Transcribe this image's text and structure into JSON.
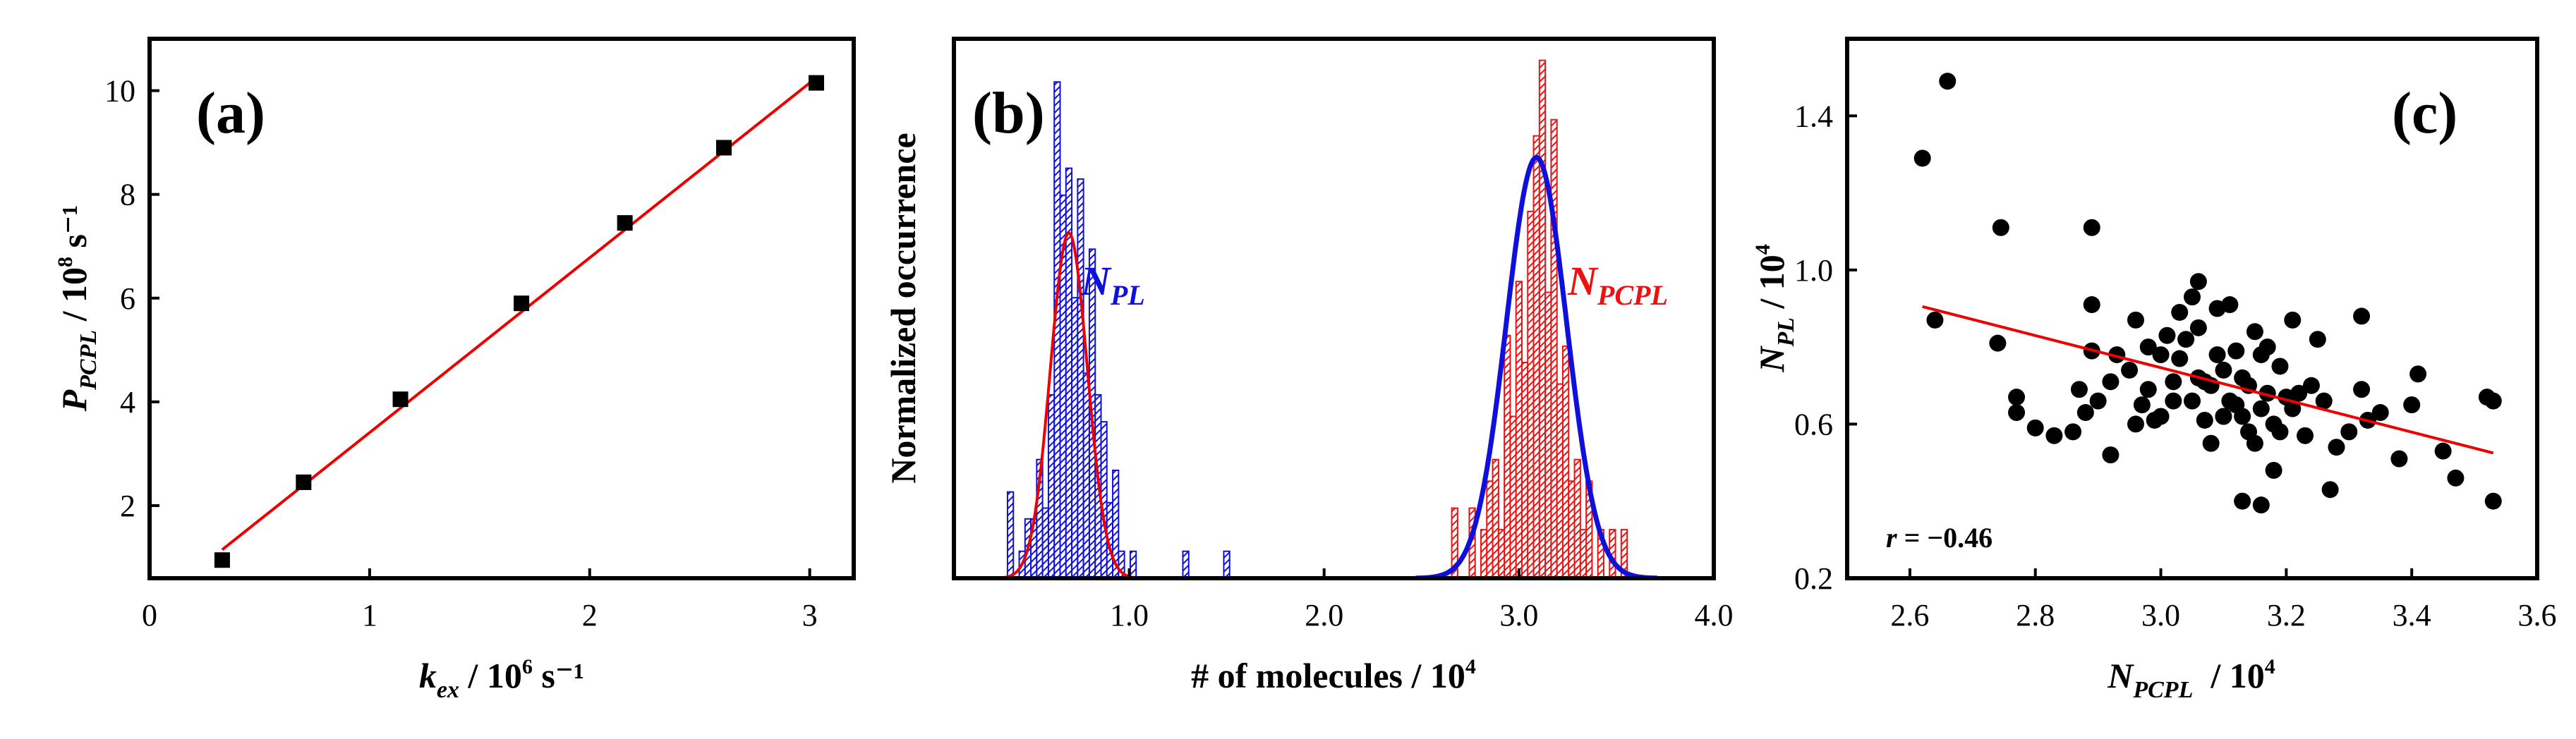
{
  "chart_data": [
    {
      "panel": "(a)",
      "type": "scatter",
      "title": "",
      "xlabel": {
        "main": "k",
        "sub": "ex",
        "rest": " / 10",
        "sup": "6",
        "unit": " s⁻¹"
      },
      "ylabel": {
        "main": "P",
        "sub": "PCPL",
        "rest": " / 10",
        "sup": "8",
        "unit": " s⁻¹"
      },
      "xlim": [
        0,
        3.2
      ],
      "ylim": [
        0.6,
        11.0
      ],
      "xticks": [
        0,
        1,
        2,
        3
      ],
      "yticks": [
        2,
        4,
        6,
        8,
        10
      ],
      "x": [
        0.33,
        0.7,
        1.14,
        1.69,
        2.16,
        2.61,
        3.03
      ],
      "y": [
        0.95,
        2.45,
        4.05,
        5.9,
        7.45,
        8.9,
        10.15
      ],
      "fit": {
        "x": [
          0.33,
          3.03
        ],
        "y": [
          1.15,
          10.25
        ],
        "color": "#ee0000"
      },
      "marker_color": "#000000"
    },
    {
      "panel": "(b)",
      "type": "bar",
      "title": "",
      "xlabel": {
        "main": "# of molecules / 10",
        "sup": "4"
      },
      "ylabel": "Normalized occurrence",
      "xlim": [
        0.1,
        4.0
      ],
      "ylim": [
        0,
        1.0
      ],
      "xticks": [
        "1.0",
        "2.0",
        "3.0",
        "4.0"
      ],
      "bin_width": 0.03,
      "series": [
        {
          "name": "N_PL",
          "label_main": "N",
          "label_sub": "PL",
          "color": "#1010dd",
          "fit_color": "#ee0000",
          "bins": [
            0.39,
            0.45,
            0.48,
            0.51,
            0.54,
            0.57,
            0.6,
            0.63,
            0.66,
            0.69,
            0.72,
            0.75,
            0.78,
            0.81,
            0.84,
            0.87,
            0.9,
            0.93,
            0.96,
            1.02,
            1.29,
            1.5
          ],
          "values": [
            0.16,
            0.05,
            0.11,
            0.11,
            0.22,
            0.13,
            0.34,
            0.92,
            0.71,
            0.76,
            0.52,
            0.74,
            0.38,
            0.61,
            0.34,
            0.29,
            0.14,
            0.2,
            0.05,
            0.05,
            0.05,
            0.05
          ],
          "fit_mean": 0.69,
          "fit_sigma": 0.095,
          "fit_amp": 0.64
        },
        {
          "name": "N_PCPL",
          "label_main": "N",
          "label_sub": "PCPL",
          "color": "#ee1111",
          "fit_color": "#1010dd",
          "bins": [
            2.67,
            2.76,
            2.82,
            2.85,
            2.88,
            2.91,
            2.94,
            2.97,
            3.0,
            3.03,
            3.06,
            3.09,
            3.12,
            3.15,
            3.18,
            3.21,
            3.24,
            3.27,
            3.3,
            3.33,
            3.36,
            3.42,
            3.48,
            3.54
          ],
          "values": [
            0.13,
            0.13,
            0.09,
            0.18,
            0.22,
            0.09,
            0.45,
            0.3,
            0.55,
            0.4,
            0.68,
            0.82,
            0.96,
            0.53,
            0.85,
            0.36,
            0.43,
            0.18,
            0.22,
            0.09,
            0.18,
            0.09,
            0.09,
            0.09
          ],
          "fit_mean": 3.09,
          "fit_sigma": 0.155,
          "fit_amp": 0.78
        }
      ]
    },
    {
      "panel": "(c)",
      "type": "scatter",
      "title": "",
      "xlabel": {
        "main": "N",
        "sub": "PCPL",
        "rest": "  / 10",
        "sup": "4"
      },
      "ylabel": {
        "main": "N",
        "sub": "PL",
        "rest": " / 10",
        "sup": "4"
      },
      "xlim": [
        2.5,
        3.6
      ],
      "ylim": [
        0.2,
        1.6
      ],
      "xticks": [
        "2.6",
        "2.8",
        "3.0",
        "3.2",
        "3.4",
        "3.6"
      ],
      "yticks": [
        "0.2",
        "0.6",
        "1.0",
        "1.4"
      ],
      "annotation": "r = −0.46",
      "annotation_r": "r",
      "annotation_rest": " = −0.46",
      "fit": {
        "x": [
          2.62,
          3.53
        ],
        "y": [
          0.905,
          0.525
        ],
        "color": "#ee0000"
      },
      "marker_color": "#000000",
      "x": [
        2.62,
        2.66,
        2.64,
        2.745,
        2.77,
        2.77,
        2.74,
        2.8,
        2.83,
        2.86,
        2.87,
        2.89,
        2.89,
        2.88,
        2.9,
        2.89,
        2.92,
        2.92,
        2.93,
        2.95,
        2.96,
        2.96,
        2.97,
        2.98,
        2.98,
        2.99,
        3.0,
        3.0,
        3.01,
        3.02,
        3.02,
        3.03,
        3.03,
        3.04,
        3.05,
        3.05,
        3.06,
        3.06,
        3.07,
        3.07,
        3.08,
        3.08,
        3.09,
        3.09,
        3.1,
        3.1,
        3.11,
        3.11,
        3.12,
        3.12,
        3.13,
        3.13,
        3.14,
        3.14,
        3.15,
        3.15,
        3.16,
        3.16,
        3.17,
        3.17,
        3.18,
        3.18,
        3.19,
        3.19,
        3.2,
        3.21,
        3.21,
        3.22,
        3.23,
        3.24,
        3.25,
        3.26,
        3.27,
        3.28,
        3.3,
        3.32,
        3.32,
        3.33,
        3.35,
        3.38,
        3.4,
        3.41,
        3.45,
        3.47,
        3.52,
        3.53,
        3.53,
        3.13,
        3.16,
        3.06,
        3.1
      ],
      "y": [
        1.29,
        1.49,
        0.87,
        1.11,
        0.67,
        0.63,
        0.81,
        0.59,
        0.57,
        0.58,
        0.69,
        0.91,
        1.11,
        0.63,
        0.66,
        0.79,
        0.52,
        0.71,
        0.78,
        0.74,
        0.87,
        0.6,
        0.65,
        0.8,
        0.69,
        0.61,
        0.78,
        0.62,
        0.83,
        0.71,
        0.66,
        0.89,
        0.77,
        0.82,
        0.93,
        0.66,
        0.97,
        0.72,
        0.71,
        0.61,
        0.7,
        0.55,
        0.9,
        0.78,
        0.74,
        0.62,
        0.66,
        0.91,
        0.65,
        0.79,
        0.72,
        0.62,
        0.58,
        0.7,
        0.84,
        0.55,
        0.78,
        0.64,
        0.8,
        0.68,
        0.48,
        0.6,
        0.75,
        0.58,
        0.67,
        0.87,
        0.64,
        0.68,
        0.57,
        0.7,
        0.82,
        0.66,
        0.43,
        0.54,
        0.58,
        0.69,
        0.88,
        0.61,
        0.63,
        0.51,
        0.65,
        0.73,
        0.53,
        0.46,
        0.67,
        0.66,
        0.4,
        0.4,
        0.39,
        0.85,
        0.62
      ]
    }
  ]
}
